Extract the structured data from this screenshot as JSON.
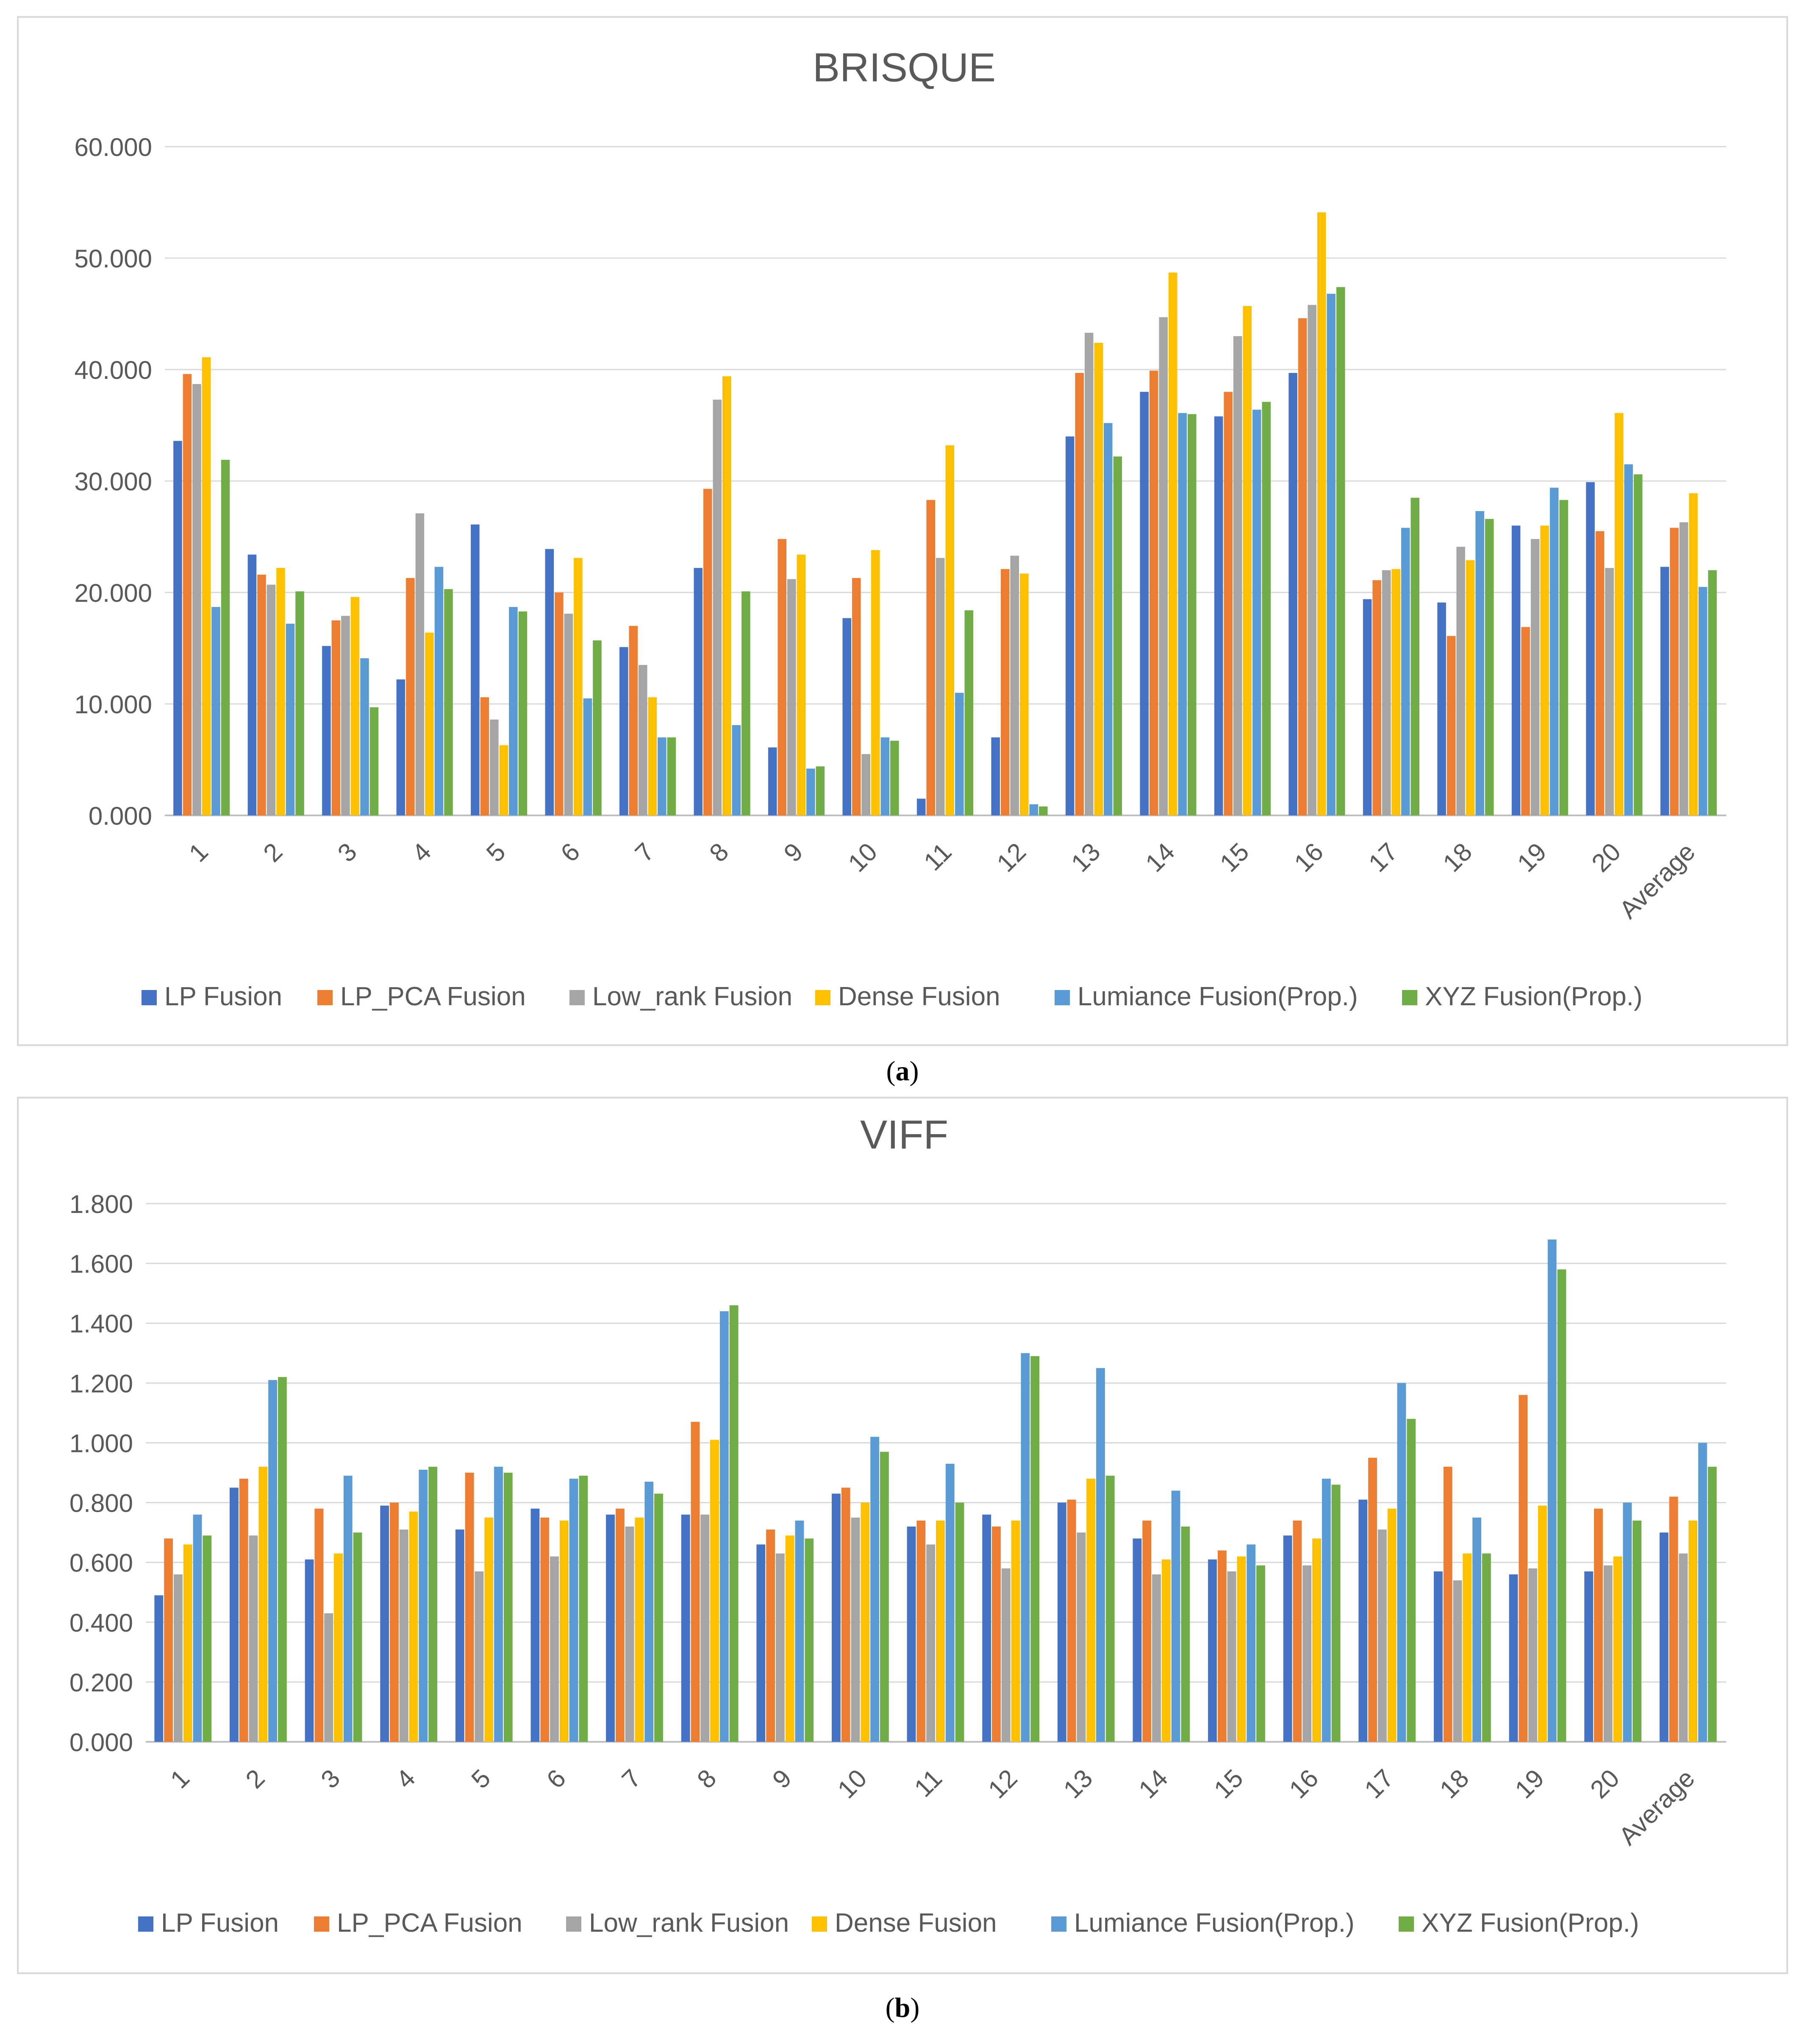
{
  "captions": {
    "a_label": "a",
    "b_label": "b"
  },
  "legend_colors": [
    "#4472C4",
    "#ED7D31",
    "#A5A5A5",
    "#FFC000",
    "#5B9BD5",
    "#70AD47"
  ],
  "chart_data": [
    {
      "type": "bar",
      "title": "BRISQUE",
      "xlabel": "",
      "ylabel": "",
      "ylim": [
        0,
        60
      ],
      "yticks": [
        "0.000",
        "10.000",
        "20.000",
        "30.000",
        "40.000",
        "50.000",
        "60.000"
      ],
      "grid": true,
      "legend_position": "bottom",
      "categories": [
        "1",
        "2",
        "3",
        "4",
        "5",
        "6",
        "7",
        "8",
        "9",
        "10",
        "11",
        "12",
        "13",
        "14",
        "15",
        "16",
        "17",
        "18",
        "19",
        "20",
        "Average"
      ],
      "series": [
        {
          "name": "LP Fusion",
          "values": [
            33.6,
            23.4,
            15.2,
            12.2,
            26.1,
            23.9,
            15.1,
            22.2,
            6.1,
            17.7,
            1.5,
            7.0,
            34.0,
            38.0,
            35.8,
            39.7,
            19.4,
            19.1,
            26.0,
            29.9,
            22.3
          ]
        },
        {
          "name": "LP_PCA Fusion",
          "values": [
            39.6,
            21.6,
            17.5,
            21.3,
            10.6,
            20.0,
            17.0,
            29.3,
            24.8,
            21.3,
            28.3,
            22.1,
            39.7,
            39.9,
            38.0,
            44.6,
            21.1,
            16.1,
            16.9,
            25.5,
            25.8
          ]
        },
        {
          "name": "Low_rank Fusion",
          "values": [
            38.7,
            20.7,
            17.9,
            27.1,
            8.6,
            18.1,
            13.5,
            37.3,
            21.2,
            5.5,
            23.1,
            23.3,
            43.3,
            44.7,
            43.0,
            45.8,
            22.0,
            24.1,
            24.8,
            22.2,
            26.3
          ]
        },
        {
          "name": "Dense Fusion",
          "values": [
            41.1,
            22.2,
            19.6,
            16.4,
            6.3,
            23.1,
            10.6,
            39.4,
            23.4,
            23.8,
            33.2,
            21.7,
            42.4,
            48.7,
            45.7,
            54.1,
            22.1,
            22.9,
            26.0,
            36.1,
            28.9
          ]
        },
        {
          "name": "Lumiance Fusion(Prop.)",
          "values": [
            18.7,
            17.2,
            14.1,
            22.3,
            18.7,
            10.5,
            7.0,
            8.1,
            4.2,
            7.0,
            11.0,
            1.0,
            35.2,
            36.1,
            36.4,
            46.8,
            25.8,
            27.3,
            29.4,
            31.5,
            20.5
          ]
        },
        {
          "name": "XYZ Fusion(Prop.)",
          "values": [
            31.9,
            20.1,
            9.7,
            20.3,
            18.3,
            15.7,
            7.0,
            20.1,
            4.4,
            6.7,
            18.4,
            0.8,
            32.2,
            36.0,
            37.1,
            47.4,
            28.5,
            26.6,
            28.3,
            30.6,
            22.0
          ]
        }
      ]
    },
    {
      "type": "bar",
      "title": "VIFF",
      "xlabel": "",
      "ylabel": "",
      "ylim": [
        0,
        1.8
      ],
      "yticks": [
        "0.000",
        "0.200",
        "0.400",
        "0.600",
        "0.800",
        "1.000",
        "1.200",
        "1.400",
        "1.600",
        "1.800"
      ],
      "grid": true,
      "legend_position": "bottom",
      "categories": [
        "1",
        "2",
        "3",
        "4",
        "5",
        "6",
        "7",
        "8",
        "9",
        "10",
        "11",
        "12",
        "13",
        "14",
        "15",
        "16",
        "17",
        "18",
        "19",
        "20",
        "Average"
      ],
      "series": [
        {
          "name": "LP Fusion",
          "values": [
            0.49,
            0.85,
            0.61,
            0.79,
            0.71,
            0.78,
            0.76,
            0.76,
            0.66,
            0.83,
            0.72,
            0.76,
            0.8,
            0.68,
            0.61,
            0.69,
            0.81,
            0.57,
            0.56,
            0.57,
            0.7
          ]
        },
        {
          "name": "LP_PCA Fusion",
          "values": [
            0.68,
            0.88,
            0.78,
            0.8,
            0.9,
            0.75,
            0.78,
            1.07,
            0.71,
            0.85,
            0.74,
            0.72,
            0.81,
            0.74,
            0.64,
            0.74,
            0.95,
            0.92,
            1.16,
            0.78,
            0.82
          ]
        },
        {
          "name": "Low_rank Fusion",
          "values": [
            0.56,
            0.69,
            0.43,
            0.71,
            0.57,
            0.62,
            0.72,
            0.76,
            0.63,
            0.75,
            0.66,
            0.58,
            0.7,
            0.56,
            0.57,
            0.59,
            0.71,
            0.54,
            0.58,
            0.59,
            0.63
          ]
        },
        {
          "name": "Dense Fusion",
          "values": [
            0.66,
            0.92,
            0.63,
            0.77,
            0.75,
            0.74,
            0.75,
            1.01,
            0.69,
            0.8,
            0.74,
            0.74,
            0.88,
            0.61,
            0.62,
            0.68,
            0.78,
            0.63,
            0.79,
            0.62,
            0.74
          ]
        },
        {
          "name": "Lumiance Fusion(Prop.)",
          "values": [
            0.76,
            1.21,
            0.89,
            0.91,
            0.92,
            0.88,
            0.87,
            1.44,
            0.74,
            1.02,
            0.93,
            1.3,
            1.25,
            0.84,
            0.66,
            0.88,
            1.2,
            0.75,
            1.68,
            0.8,
            1.0
          ]
        },
        {
          "name": "XYZ Fusion(Prop.)",
          "values": [
            0.69,
            1.22,
            0.7,
            0.92,
            0.9,
            0.89,
            0.83,
            1.46,
            0.68,
            0.97,
            0.8,
            1.29,
            0.89,
            0.72,
            0.59,
            0.86,
            1.08,
            0.63,
            1.58,
            0.74,
            0.92
          ]
        }
      ]
    }
  ]
}
